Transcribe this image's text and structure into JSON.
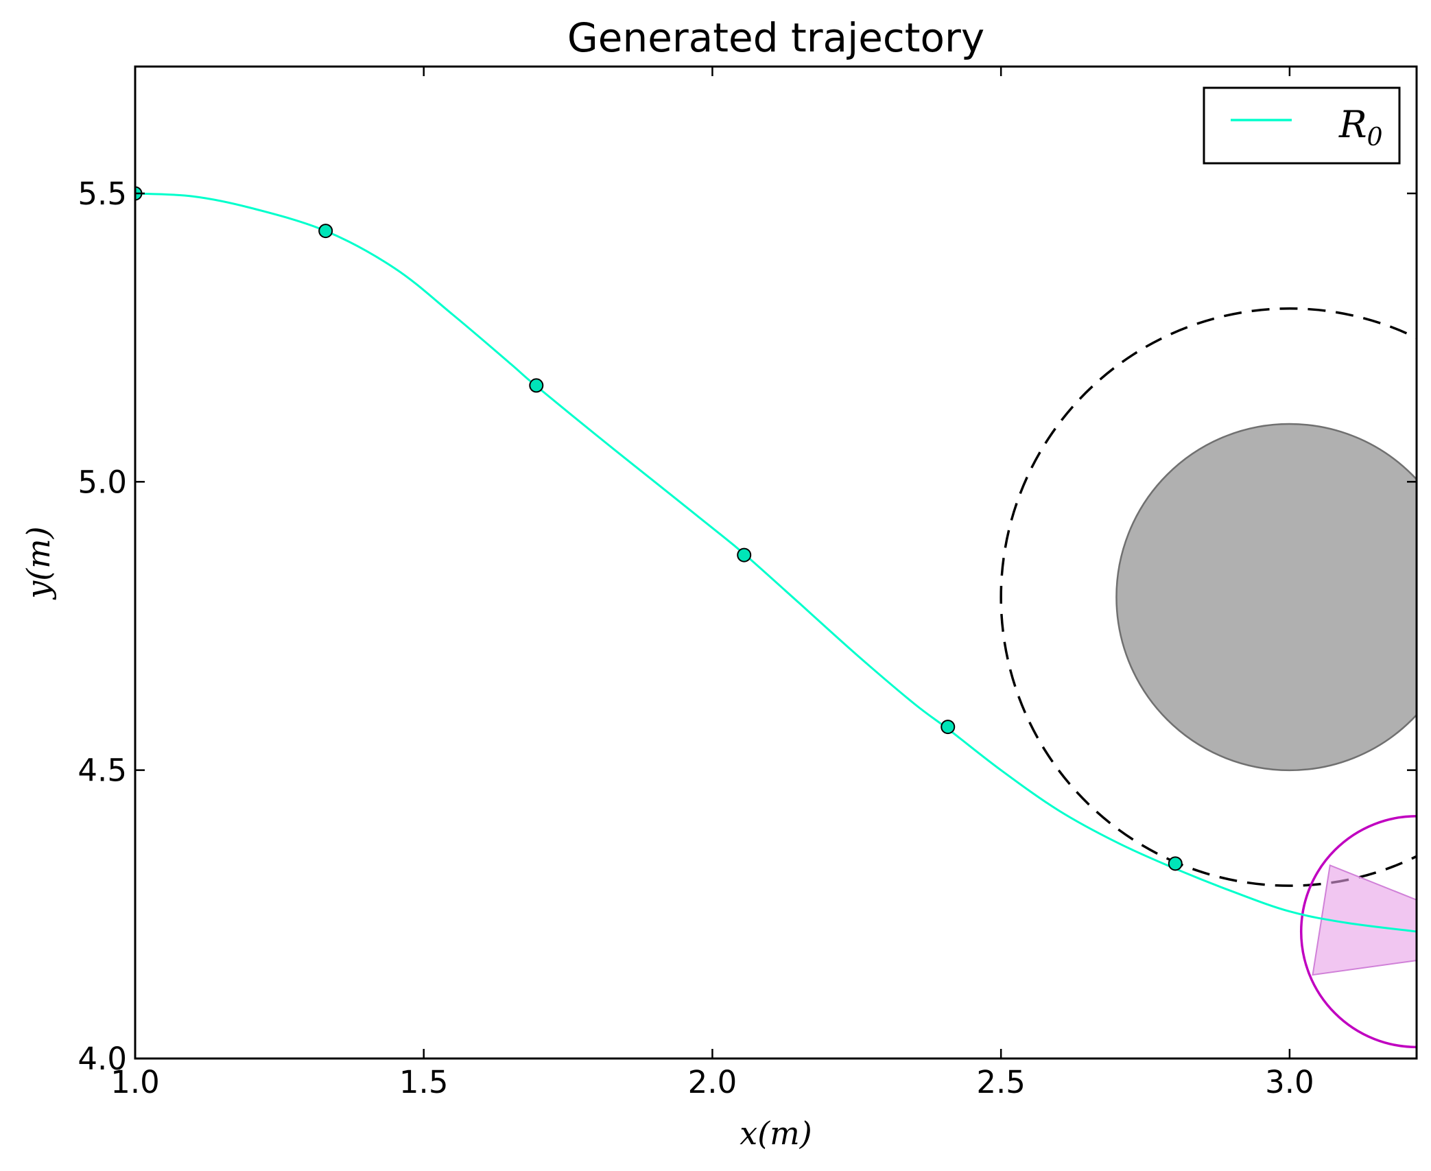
{
  "chart_data": {
    "type": "line",
    "title": "Generated trajectory",
    "xlabel": "x(m)",
    "ylabel": "y(m)",
    "xlim": [
      1.0,
      3.22
    ],
    "ylim": [
      4.0,
      5.72
    ],
    "xticks": [
      1.0,
      1.5,
      2.0,
      2.5,
      3.0
    ],
    "yticks": [
      4.0,
      4.5,
      5.0,
      5.5
    ],
    "xtick_labels": [
      "1.0",
      "1.5",
      "2.0",
      "2.5",
      "3.0"
    ],
    "ytick_labels": [
      "4.0",
      "4.5",
      "5.0",
      "5.5"
    ],
    "grid": false,
    "legend": {
      "placement": "top-right",
      "entries": [
        {
          "label": "R",
          "subscript": "0",
          "color": "#00ffcc"
        }
      ]
    },
    "series": [
      {
        "name": "R₀",
        "color": "#00ffcc",
        "x": [
          1.0,
          1.1,
          1.2,
          1.33,
          1.45,
          1.55,
          1.65,
          1.69,
          1.8,
          1.9,
          2.0,
          2.055,
          2.15,
          2.25,
          2.35,
          2.41,
          2.5,
          2.6,
          2.7,
          2.8,
          2.9,
          3.0,
          3.1,
          3.22
        ],
        "y": [
          5.5,
          5.495,
          5.475,
          5.435,
          5.37,
          5.29,
          5.205,
          5.17,
          5.08,
          5.0,
          4.92,
          4.875,
          4.79,
          4.7,
          4.615,
          4.57,
          4.5,
          4.43,
          4.375,
          4.33,
          4.29,
          4.255,
          4.235,
          4.22
        ]
      }
    ],
    "waypoints": {
      "x": [
        1.0,
        1.33,
        1.695,
        2.055,
        2.408,
        2.802
      ],
      "y": [
        5.5,
        5.435,
        5.167,
        4.873,
        4.575,
        4.338
      ],
      "color": "#00e5b8"
    },
    "obstacle": {
      "center": [
        3.0,
        4.8
      ],
      "radius": 0.3,
      "color": "#b0b0b0"
    },
    "safety_zone": {
      "center": [
        3.0,
        4.8
      ],
      "radius": 0.5,
      "style": "dashed",
      "color": "#000000"
    },
    "robot": {
      "center": [
        3.22,
        4.22
      ],
      "radius": 0.2,
      "color": "#c000c0"
    },
    "sensor_cone": {
      "polygon": [
        [
          3.04,
          4.145
        ],
        [
          3.07,
          4.335
        ],
        [
          3.22,
          4.275
        ],
        [
          3.22,
          4.17
        ]
      ],
      "color": "#e8a0e8"
    }
  }
}
